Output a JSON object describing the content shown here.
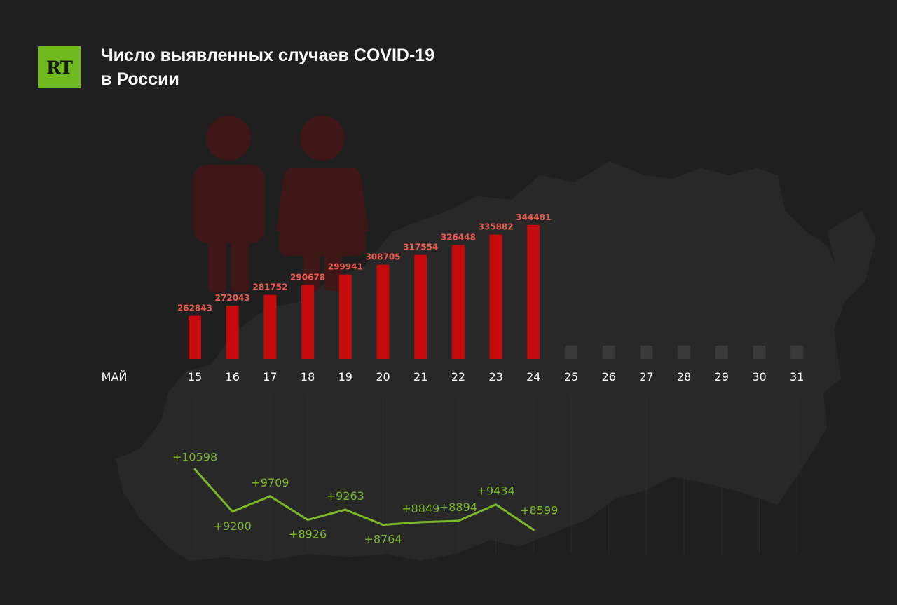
{
  "header": {
    "logo_text": "RT",
    "title_line1": "Число выявленных случаев COVID-19",
    "title_line2": "в России"
  },
  "colors": {
    "background": "#1f1f1f",
    "bar": "#c40a0a",
    "bar_label": "#ee5a4e",
    "placeholder_bar": "#3a3a3a",
    "line": "#7ab828",
    "logo": "#6fba1e",
    "text": "#ffffff"
  },
  "chart_data": [
    {
      "type": "bar",
      "month_label": "МАЙ",
      "categories": [
        "15",
        "16",
        "17",
        "18",
        "19",
        "20",
        "21",
        "22",
        "23",
        "24",
        "25",
        "26",
        "27",
        "28",
        "29",
        "30",
        "31"
      ],
      "values": [
        262843,
        272043,
        281752,
        290678,
        299941,
        308705,
        317554,
        326448,
        335882,
        344481,
        null,
        null,
        null,
        null,
        null,
        null,
        null
      ],
      "labels": [
        "262843",
        "272043",
        "281752",
        "290678",
        "299941",
        "308705",
        "317554",
        "326448",
        "335882",
        "344481"
      ]
    },
    {
      "type": "line",
      "categories": [
        "15",
        "16",
        "17",
        "18",
        "19",
        "20",
        "21",
        "22",
        "23",
        "24"
      ],
      "values": [
        10598,
        9200,
        9709,
        8926,
        9263,
        8764,
        8849,
        8894,
        9434,
        8599
      ],
      "labels": [
        "+10598",
        "+9200",
        "+9709",
        "+8926",
        "+9263",
        "+8764",
        "+8849",
        "+8894",
        "+9434",
        "+8599"
      ]
    }
  ]
}
